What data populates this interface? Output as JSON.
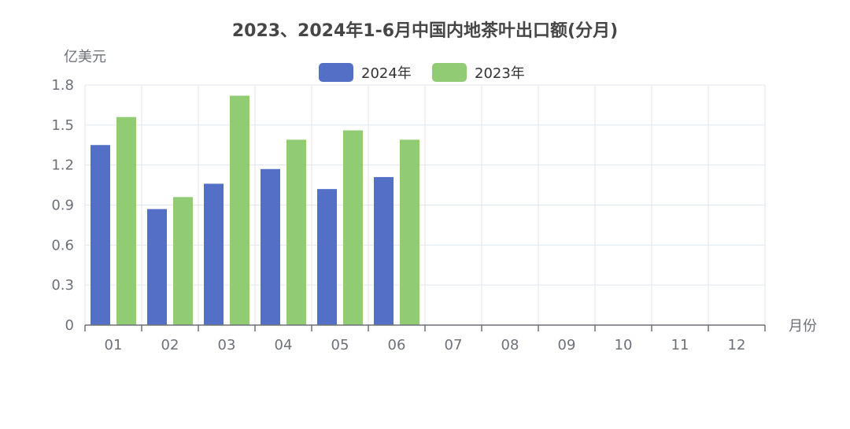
{
  "chart_data": {
    "type": "bar",
    "title": "2023、2024年1-6月中国内地茶叶出口额(分月)",
    "ylabel": "亿美元",
    "xlabel": "月份",
    "categories": [
      "01",
      "02",
      "03",
      "04",
      "05",
      "06",
      "07",
      "08",
      "09",
      "10",
      "11",
      "12"
    ],
    "ylim": [
      0,
      1.8
    ],
    "yticks": [
      "0",
      "0.3",
      "0.6",
      "0.9",
      "1.2",
      "1.5",
      "1.8"
    ],
    "grid": true,
    "legend_position": "top-center",
    "series": [
      {
        "name": "2024年",
        "color": "#5470c6",
        "values": [
          1.35,
          0.87,
          1.06,
          1.17,
          1.02,
          1.11,
          null,
          null,
          null,
          null,
          null,
          null
        ]
      },
      {
        "name": "2023年",
        "color": "#91cc75",
        "values": [
          1.56,
          0.96,
          1.72,
          1.39,
          1.46,
          1.39,
          null,
          null,
          null,
          null,
          null,
          null
        ]
      }
    ]
  }
}
